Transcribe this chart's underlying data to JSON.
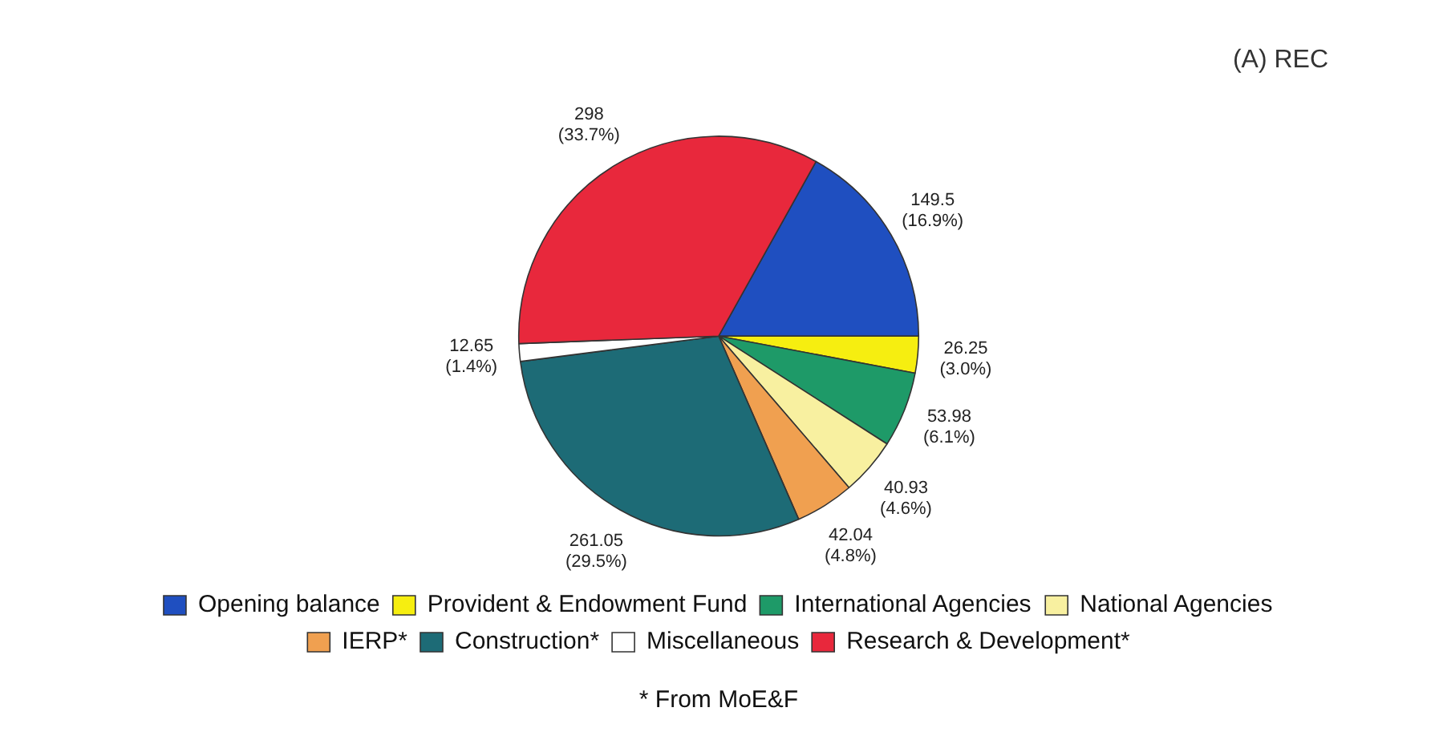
{
  "chart_data": {
    "type": "pie",
    "title": "(A) REC",
    "categories": [
      "Opening balance",
      "Provident & Endowment Fund",
      "International Agencies",
      "National Agencies",
      "IERP*",
      "Construction*",
      "Miscellaneous",
      "Research & Development*"
    ],
    "values": [
      149.5,
      26.25,
      53.98,
      40.93,
      42.04,
      261.05,
      12.65,
      298
    ],
    "colors": [
      "#1f4fc0",
      "#f6ee10",
      "#1e9a68",
      "#f8f0a0",
      "#f0a050",
      "#1d6b76",
      "#ffffff",
      "#e8283c"
    ],
    "value_labels": [
      "149.5\n(16.9%)",
      "26.25\n(3.0%)",
      "53.98\n(6.1%)",
      "40.93\n(4.6%)",
      "42.04\n(4.8%)",
      "261.05\n(29.5%)",
      "12.65\n(1.4%)",
      "298\n(33.7%)"
    ],
    "legend": "bottom",
    "annotations": [
      "* From MoE&F"
    ]
  }
}
